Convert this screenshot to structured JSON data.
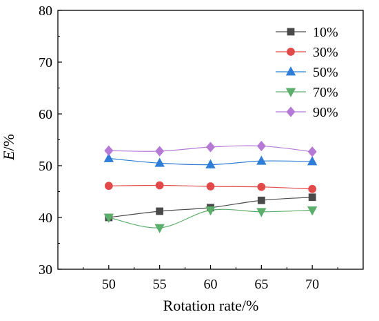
{
  "chart_data": {
    "type": "line",
    "xlabel": "Rotation rate/%",
    "ylabel": "E/%",
    "ylabel_parts": {
      "italic": "E",
      "rest": "/%"
    },
    "xlim": [
      45,
      75
    ],
    "ylim": [
      30,
      80
    ],
    "x": [
      50,
      55,
      60,
      65,
      70
    ],
    "xticks": [
      "50",
      "55",
      "60",
      "65",
      "70"
    ],
    "yticks": [
      "30",
      "40",
      "50",
      "60",
      "70",
      "80"
    ],
    "grid": false,
    "legend_position": "top-right",
    "series": [
      {
        "name": "10%",
        "color": "#4a4a4a",
        "marker": "square",
        "values": [
          40.0,
          41.2,
          41.9,
          43.3,
          43.9
        ]
      },
      {
        "name": "30%",
        "color": "#e24a4a",
        "marker": "circle",
        "values": [
          46.1,
          46.2,
          46.0,
          45.9,
          45.5
        ]
      },
      {
        "name": "50%",
        "color": "#2e7dd6",
        "marker": "triangle-up",
        "values": [
          51.4,
          50.5,
          50.2,
          50.9,
          50.8
        ]
      },
      {
        "name": "70%",
        "color": "#5cae6b",
        "marker": "triangle-down",
        "values": [
          40.0,
          38.0,
          41.4,
          41.1,
          41.4
        ]
      },
      {
        "name": "90%",
        "color": "#b57ad6",
        "marker": "diamond",
        "values": [
          52.9,
          52.8,
          53.6,
          53.8,
          52.7
        ]
      }
    ]
  }
}
